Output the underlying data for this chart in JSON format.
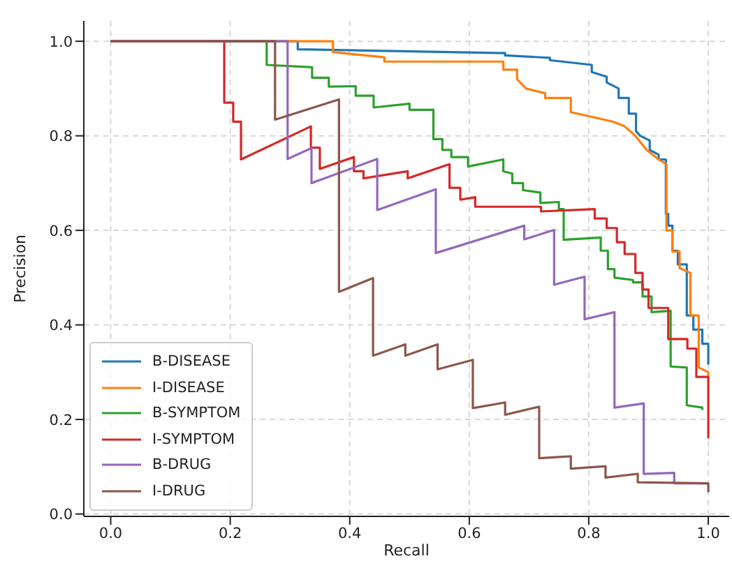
{
  "chart_data": {
    "type": "line",
    "xlabel": "Recall",
    "ylabel": "Precision",
    "xlim": [
      -0.045,
      1.035
    ],
    "ylim": [
      -0.005,
      1.043
    ],
    "xticks": [
      {
        "value": 0,
        "label": "0.0"
      },
      0.2,
      0.4,
      0.6,
      0.8,
      {
        "value": 1,
        "label": "1.0"
      }
    ],
    "yticks": [
      {
        "value": 0,
        "label": "0.0"
      },
      0.2,
      0.4,
      0.6,
      0.8,
      {
        "value": 1,
        "label": "1.0"
      }
    ],
    "grid": true,
    "legend": "bottom left",
    "marker": "none",
    "line_style": "solid",
    "series": [
      {
        "name": "B-DISEASE",
        "color": "#1f77b4",
        "x": [
          0,
          0.313,
          0.313,
          0.66,
          0.66,
          0.735,
          0.735,
          0.805,
          0.805,
          0.83,
          0.83,
          0.85,
          0.85,
          0.867,
          0.867,
          0.879,
          0.879,
          0.886,
          0.886,
          0.902,
          0.902,
          0.917,
          0.917,
          0.929,
          0.929,
          0.933,
          0.933,
          0.94,
          0.94,
          0.949,
          0.949,
          0.964,
          0.964,
          0.975,
          0.975,
          0.99,
          0.99,
          1.0,
          1.0
        ],
        "values": [
          1.0,
          1.0,
          0.983,
          0.975,
          0.97,
          0.965,
          0.96,
          0.95,
          0.935,
          0.925,
          0.913,
          0.9,
          0.88,
          0.88,
          0.847,
          0.847,
          0.81,
          0.8,
          0.8,
          0.79,
          0.77,
          0.76,
          0.75,
          0.75,
          0.635,
          0.635,
          0.61,
          0.61,
          0.557,
          0.557,
          0.528,
          0.528,
          0.42,
          0.42,
          0.39,
          0.39,
          0.36,
          0.36,
          0.316
        ]
      },
      {
        "name": "I-DISEASE",
        "color": "#ff7f0e",
        "x": [
          0,
          0.372,
          0.372,
          0.458,
          0.458,
          0.657,
          0.657,
          0.68,
          0.68,
          0.695,
          0.695,
          0.727,
          0.727,
          0.77,
          0.77,
          0.805,
          0.805,
          0.84,
          0.84,
          0.86,
          0.86,
          0.878,
          0.878,
          0.897,
          0.897,
          0.917,
          0.917,
          0.93,
          0.93,
          0.94,
          0.94,
          0.952,
          0.952,
          0.97,
          0.97,
          0.984,
          0.984,
          1.0,
          1.0
        ],
        "values": [
          1.0,
          1.0,
          0.977,
          0.966,
          0.957,
          0.957,
          0.94,
          0.94,
          0.92,
          0.9,
          0.9,
          0.89,
          0.88,
          0.88,
          0.85,
          0.84,
          0.84,
          0.83,
          0.83,
          0.82,
          0.82,
          0.8,
          0.8,
          0.77,
          0.77,
          0.75,
          0.75,
          0.74,
          0.6,
          0.6,
          0.555,
          0.555,
          0.52,
          0.51,
          0.42,
          0.42,
          0.31,
          0.3,
          0.29
        ]
      },
      {
        "name": "B-SYMPTOM",
        "color": "#2ca02c",
        "x": [
          0,
          0.261,
          0.261,
          0.337,
          0.337,
          0.365,
          0.365,
          0.41,
          0.41,
          0.44,
          0.44,
          0.5,
          0.5,
          0.54,
          0.54,
          0.555,
          0.555,
          0.57,
          0.57,
          0.598,
          0.598,
          0.657,
          0.657,
          0.672,
          0.672,
          0.69,
          0.69,
          0.719,
          0.719,
          0.75,
          0.75,
          0.758,
          0.758,
          0.82,
          0.82,
          0.832,
          0.832,
          0.843,
          0.843,
          0.874,
          0.874,
          0.89,
          0.89,
          0.905,
          0.905,
          0.937,
          0.937,
          0.964,
          0.964,
          0.99,
          0.99
        ],
        "values": [
          1.0,
          1.0,
          0.95,
          0.945,
          0.923,
          0.923,
          0.904,
          0.905,
          0.885,
          0.885,
          0.86,
          0.868,
          0.855,
          0.855,
          0.793,
          0.793,
          0.77,
          0.77,
          0.755,
          0.755,
          0.735,
          0.75,
          0.725,
          0.72,
          0.7,
          0.7,
          0.685,
          0.68,
          0.658,
          0.66,
          0.645,
          0.645,
          0.58,
          0.585,
          0.557,
          0.557,
          0.518,
          0.518,
          0.5,
          0.495,
          0.49,
          0.49,
          0.46,
          0.46,
          0.427,
          0.43,
          0.312,
          0.31,
          0.23,
          0.225,
          0.22
        ]
      },
      {
        "name": "I-SYMPTOM",
        "color": "#d62728",
        "x": [
          0,
          0.19,
          0.19,
          0.205,
          0.205,
          0.218,
          0.218,
          0.335,
          0.335,
          0.35,
          0.35,
          0.407,
          0.407,
          0.423,
          0.423,
          0.497,
          0.497,
          0.567,
          0.567,
          0.585,
          0.585,
          0.61,
          0.61,
          0.72,
          0.72,
          0.81,
          0.81,
          0.83,
          0.83,
          0.847,
          0.847,
          0.86,
          0.86,
          0.878,
          0.878,
          0.89,
          0.89,
          0.9,
          0.9,
          0.933,
          0.933,
          0.965,
          0.965,
          0.98,
          0.98,
          1.0,
          1.0
        ],
        "values": [
          1.0,
          1.0,
          0.87,
          0.87,
          0.83,
          0.83,
          0.75,
          0.82,
          0.775,
          0.775,
          0.73,
          0.755,
          0.725,
          0.725,
          0.71,
          0.725,
          0.71,
          0.74,
          0.69,
          0.69,
          0.665,
          0.67,
          0.65,
          0.65,
          0.64,
          0.645,
          0.625,
          0.625,
          0.605,
          0.605,
          0.575,
          0.575,
          0.55,
          0.55,
          0.51,
          0.51,
          0.475,
          0.475,
          0.436,
          0.436,
          0.37,
          0.37,
          0.35,
          0.35,
          0.29,
          0.29,
          0.16
        ]
      },
      {
        "name": "B-DRUG",
        "color": "#9467bd",
        "x": [
          0,
          0.296,
          0.296,
          0.336,
          0.336,
          0.446,
          0.446,
          0.544,
          0.544,
          0.692,
          0.692,
          0.742,
          0.742,
          0.793,
          0.793,
          0.843,
          0.843,
          0.892,
          0.892,
          0.943,
          0.943,
          1.0
        ],
        "values": [
          1.0,
          1.0,
          0.751,
          0.774,
          0.7,
          0.751,
          0.643,
          0.687,
          0.552,
          0.61,
          0.581,
          0.601,
          0.485,
          0.502,
          0.412,
          0.427,
          0.225,
          0.234,
          0.085,
          0.087,
          0.065,
          0.065
        ]
      },
      {
        "name": "I-DRUG",
        "color": "#8c564b",
        "x": [
          0,
          0.275,
          0.275,
          0.382,
          0.382,
          0.439,
          0.439,
          0.493,
          0.493,
          0.547,
          0.547,
          0.606,
          0.606,
          0.66,
          0.66,
          0.717,
          0.717,
          0.77,
          0.77,
          0.828,
          0.828,
          0.882,
          0.882,
          1.0,
          1.0
        ],
        "values": [
          1.0,
          1.0,
          0.834,
          0.877,
          0.47,
          0.499,
          0.335,
          0.359,
          0.335,
          0.359,
          0.306,
          0.326,
          0.224,
          0.236,
          0.21,
          0.227,
          0.118,
          0.122,
          0.096,
          0.101,
          0.077,
          0.085,
          0.067,
          0.065,
          0.046
        ]
      }
    ]
  }
}
